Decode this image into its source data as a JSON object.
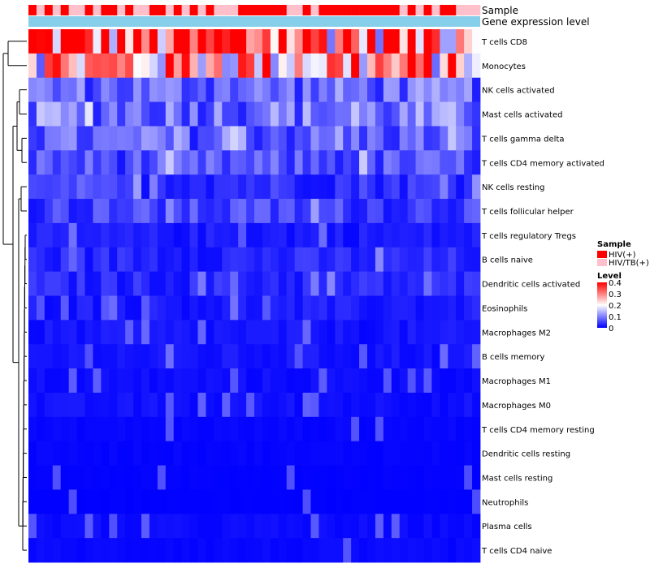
{
  "chart_data": {
    "type": "heatmap",
    "annotation_tracks": [
      "Sample",
      "Gene expression level"
    ],
    "sample_groups": [
      "HIV(+)",
      "HIV/TB(+)"
    ],
    "sample_annotation": [
      1,
      0,
      1,
      0,
      1,
      0,
      0,
      1,
      0,
      1,
      1,
      0,
      1,
      0,
      0,
      1,
      1,
      0,
      1,
      0,
      1,
      0,
      1,
      0,
      0,
      0,
      1,
      1,
      1,
      1,
      1,
      1,
      0,
      0,
      1,
      0,
      1,
      1,
      1,
      1,
      1,
      1,
      1,
      1,
      1,
      1,
      0,
      1,
      0,
      1,
      0,
      1,
      1,
      0,
      0,
      0
    ],
    "row_labels": [
      "T cells CD8",
      "Monocytes",
      "NK cells activated",
      "Mast cells activated",
      "T cells gamma delta",
      "T cells CD4 memory activated",
      "NK cells resting",
      "T cells follicular helper",
      "T cells regulatory  Tregs",
      "B cells naive",
      "Dendritic cells activated",
      "Eosinophils",
      "Macrophages M2",
      "B cells memory",
      "Macrophages M1",
      "Macrophages M0",
      "T cells CD4 memory resting",
      "Dendritic cells resting",
      "Mast cells resting",
      "Neutrophils",
      "Plasma cells",
      "T cells CD4 naive"
    ],
    "row_means": [
      0.33,
      0.27,
      0.08,
      0.09,
      0.07,
      0.06,
      0.04,
      0.05,
      0.02,
      0.03,
      0.03,
      0.02,
      0.015,
      0.015,
      0.01,
      0.012,
      0.005,
      0.004,
      0.002,
      0.001,
      0.008,
      0.006
    ],
    "n_columns": 56,
    "color_scale": {
      "min": 0,
      "max": 0.4,
      "low": "#0000ff",
      "mid": "#ffffff",
      "high": "#ff0000"
    },
    "legend": {
      "sample_title": "Sample",
      "level_title": "Level",
      "level_ticks": [
        "0.4",
        "0.3",
        "0.2",
        "0.1",
        "0"
      ],
      "level_tick_values": [
        0.4,
        0.3,
        0.2,
        0.1,
        0
      ]
    },
    "colors": {
      "hiv": "#ff0000",
      "hivtb": "#ffc0cb",
      "gene_track": "#87ceeb",
      "dendro": "#000000"
    }
  }
}
